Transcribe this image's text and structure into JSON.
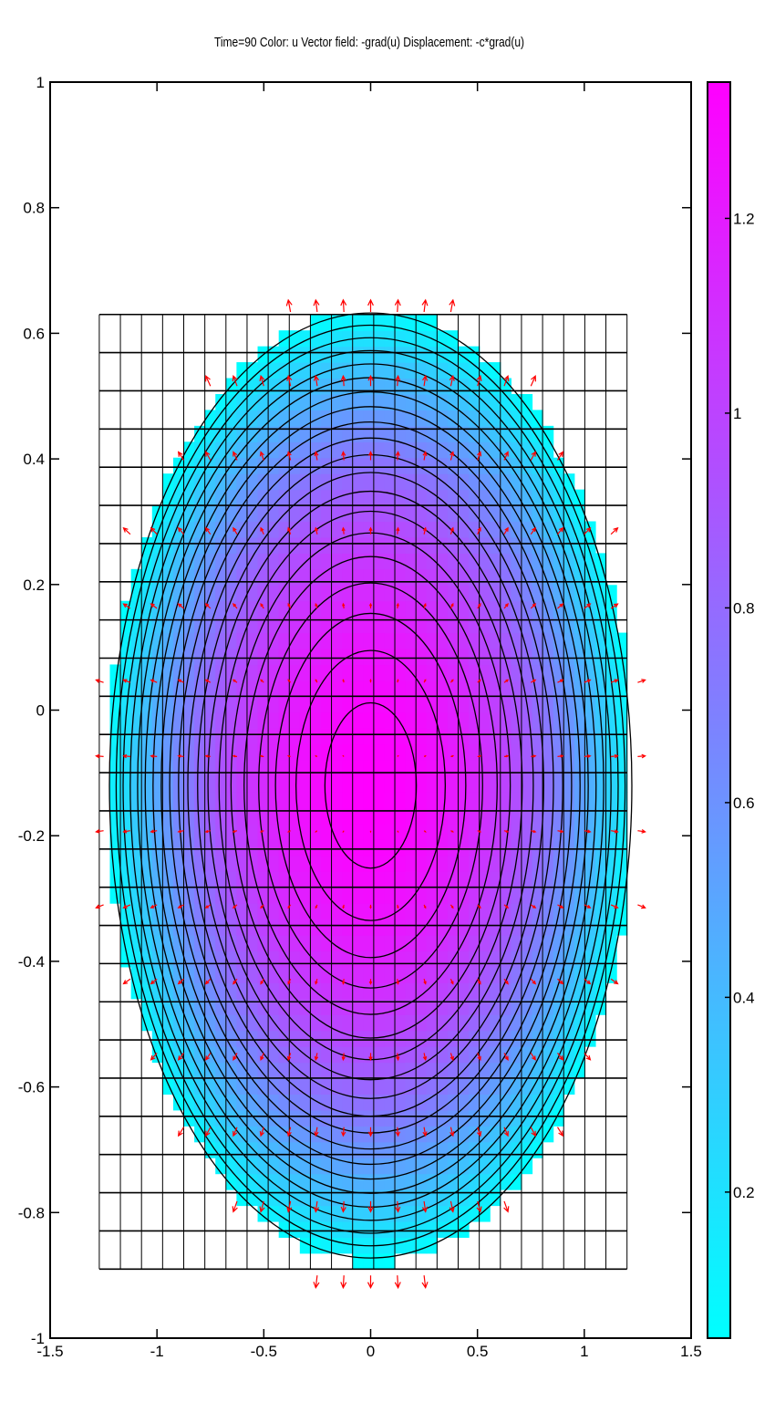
{
  "chart_data": {
    "type": "heatmap",
    "title": "Time=90   Color: u   Vector field: -grad(u)  Displacement: -c*grad(u)",
    "xlim": [
      -1.5,
      1.5
    ],
    "ylim": [
      -1,
      1
    ],
    "x_ticks": [
      -1.5,
      -1,
      -0.5,
      0,
      0.5,
      1,
      1.5
    ],
    "x_tick_labels": [
      "-1.5",
      "-1",
      "-0.5",
      "0",
      "0.5",
      "1",
      "1.5"
    ],
    "y_ticks": [
      1,
      0.8,
      0.6,
      0.4,
      0.2,
      0,
      -0.2,
      -0.4,
      -0.6,
      -0.8,
      -1
    ],
    "y_tick_labels": [
      "1",
      "0.8",
      "0.6",
      "0.4",
      "0.2",
      "0",
      "-0.2",
      "-0.4",
      "-0.6",
      "-0.8",
      "-1"
    ],
    "grid": false,
    "colorbar": {
      "range": [
        0.05,
        1.34
      ],
      "ticks": [
        0.2,
        0.4,
        0.6,
        0.8,
        1,
        1.2
      ],
      "tick_labels": [
        "0.2",
        "0.4",
        "0.6",
        "0.8",
        "1",
        "1.2"
      ],
      "colormap": "cool",
      "color_low": "#00ffff",
      "color_high": "#ff00ff"
    },
    "field": {
      "name": "u",
      "max_value": 1.34,
      "max_location": [
        0,
        -0.12
      ],
      "min_value": 0.05,
      "domain_x": [
        -1.27,
        1.2
      ],
      "domain_y": [
        -0.89,
        0.63
      ]
    },
    "mesh": {
      "x_range": [
        -1.27,
        1.2
      ],
      "y_range": [
        -0.89,
        0.63
      ],
      "columns": 25,
      "rows": 25,
      "line_color": "#000000"
    },
    "vector_field": {
      "name": "-grad(u)",
      "color": "#ff0000",
      "center": [
        0,
        -0.12
      ]
    },
    "contour_color": "#000000"
  }
}
